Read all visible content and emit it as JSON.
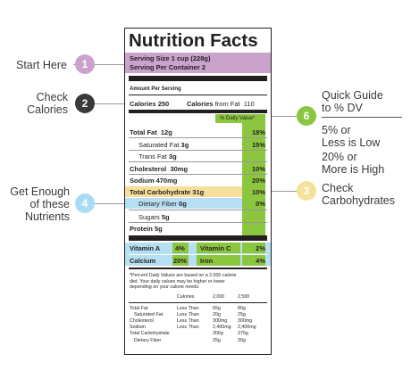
{
  "annotations": {
    "start_here": "Start Here",
    "check_calories": [
      "Check",
      "Calories"
    ],
    "get_enough": [
      "Get Enough",
      "of these",
      "Nutrients"
    ],
    "quick_guide": [
      "Quick Guide",
      "to % DV"
    ],
    "low_text": [
      "5% or",
      "Less is Low"
    ],
    "high_text": [
      "20% or",
      "More is High"
    ],
    "check_carbs": [
      "Check",
      "Carbohydrates"
    ],
    "numbers": [
      "1",
      "2",
      "3",
      "4",
      "6"
    ]
  },
  "label": {
    "title": "Nutrition Facts",
    "serving_size": "Serving Size 1 cup (228g)",
    "servings_per_container": "Serving Per Container 2",
    "amount_per_serving": "Amount Per Serving",
    "calories_label": "Calories",
    "calories_value": "250",
    "calories_fat_label": "Calories",
    "calories_fat_suffix": "from Fat",
    "calories_fat_value": "110",
    "dv_header": "% Daily Value*",
    "rows": {
      "total_fat": {
        "name": "Total Fat",
        "amount": "12g",
        "pct": "18%"
      },
      "sat_fat": {
        "name": "Saturated Fat",
        "amount": "3g",
        "pct": "15%"
      },
      "trans_fat": {
        "name": "Trans Fat",
        "amount": "3g"
      },
      "cholesterol": {
        "name": "Cholesterol",
        "amount": "30mg",
        "pct": "10%"
      },
      "sodium": {
        "name": "Sodium",
        "amount": "470mg",
        "pct": "20%"
      },
      "carbs": {
        "name": "Total Carbohydrate",
        "amount": "31g",
        "pct": "10%"
      },
      "fiber": {
        "name": "Dietary Fiber",
        "amount": "0g",
        "pct": "0%"
      },
      "sugars": {
        "name": "Sugars",
        "amount": "5g"
      },
      "protein": {
        "name": "Protein",
        "amount": "5g"
      }
    },
    "vitamins": {
      "vit_a": {
        "name": "Vitamin A",
        "pct": "4%"
      },
      "vit_c": {
        "name": "Vitamin C",
        "pct": "2%"
      },
      "calcium": {
        "name": "Calcium",
        "pct": "20%"
      },
      "iron": {
        "name": "Iron",
        "pct": "4%"
      }
    },
    "footnote": [
      "*Percent Daily Values are based on a 2,000 calorie",
      "diet. Your daily values may be higher or lower",
      "depending on your calorie needs:"
    ],
    "footnote_table": {
      "header": [
        "",
        "Calories",
        "2,000",
        "2,500"
      ],
      "rows": [
        [
          "Total Fat",
          "Less Than",
          "65g",
          "80g"
        ],
        [
          "Saturated Fat",
          "Less Than",
          "20g",
          "25g"
        ],
        [
          "Cholesterol",
          "Less Than",
          "300mg",
          "300mg"
        ],
        [
          "Sodium",
          "Less Than",
          "2,400mg",
          "2,400mg"
        ],
        [
          "Total Carbohydrate",
          "",
          "300g",
          "375g"
        ],
        [
          "Dietary Fiber",
          "",
          "25g",
          "30g"
        ]
      ]
    }
  },
  "colors": {
    "purple": "#c9a3cc",
    "dark": "#3c3c3c",
    "yellow": "#f6df9a",
    "blue": "#b7dff3",
    "green": "#8cc63f",
    "circle_purple": "#c9a3cc",
    "circle_dark": "#3a3a3a",
    "circle_yellow": "#f4e19c",
    "circle_blue": "#a9dcf2",
    "circle_green": "#8cc63f"
  }
}
